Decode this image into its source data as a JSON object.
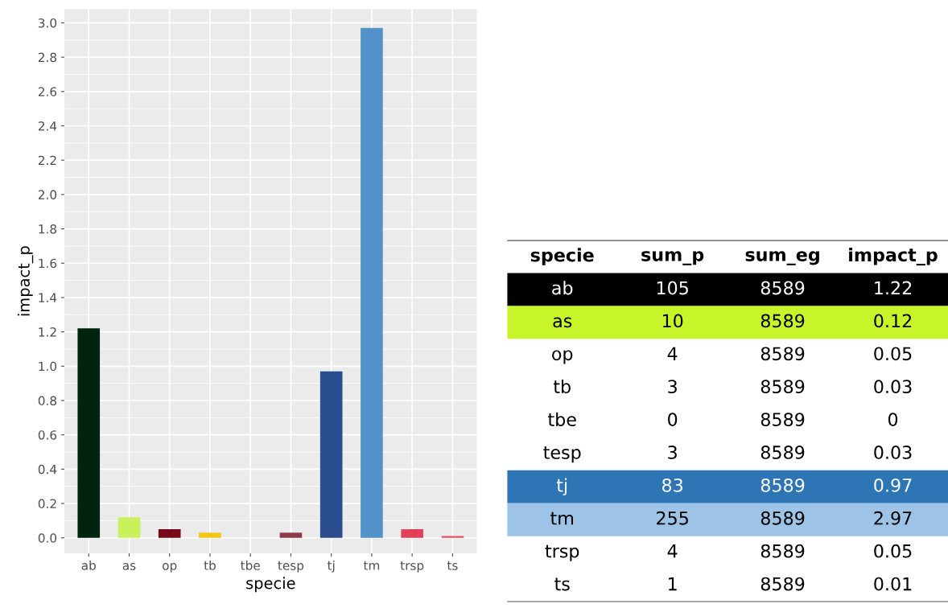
{
  "chart_data": [
    {
      "type": "bar",
      "xlabel": "specie",
      "ylabel": "impact_p",
      "categories": [
        "ab",
        "as",
        "op",
        "tb",
        "tbe",
        "tesp",
        "tj",
        "tm",
        "trsp",
        "ts"
      ],
      "values": [
        1.22,
        0.12,
        0.05,
        0.03,
        0,
        0.03,
        0.97,
        2.97,
        0.05,
        0.01
      ],
      "colors": [
        "#00240f",
        "#c8f25c",
        "#760817",
        "#f5c518",
        "#8a8a8a",
        "#8e3a48",
        "#2a4d8f",
        "#5292c8",
        "#e2405a",
        "#e8505e"
      ],
      "ylim": [
        -0.09,
        3.08
      ],
      "yticks": [
        {
          "value": 0,
          "label": "0.0"
        },
        {
          "value": 0.2,
          "label": "0.2"
        },
        {
          "value": 0.4,
          "label": "0.4"
        },
        {
          "value": 0.6,
          "label": "0.6"
        },
        {
          "value": 0.8,
          "label": "0.8"
        },
        {
          "value": 1,
          "label": "1.0"
        },
        {
          "value": 1.2,
          "label": "1.2"
        },
        {
          "value": 1.4,
          "label": "1.4"
        },
        {
          "value": 1.6,
          "label": "1.6"
        },
        {
          "value": 1.8,
          "label": "1.8"
        },
        {
          "value": 2,
          "label": "2.0"
        },
        {
          "value": 2.2,
          "label": "2.2"
        },
        {
          "value": 2.4,
          "label": "2.4"
        },
        {
          "value": 2.6,
          "label": "2.6"
        },
        {
          "value": 2.8,
          "label": "2.8"
        },
        {
          "value": 3,
          "label": "3.0"
        }
      ],
      "grid": true
    },
    {
      "type": "other",
      "categories": [
        "specie",
        "sum_p",
        "sum_eg",
        "impact_p"
      ],
      "annotations": [
        "ab",
        "105",
        "8589",
        "1.22",
        "as",
        "10",
        "8589",
        "0.12",
        "op",
        "4",
        "8589",
        "0.05",
        "tb",
        "3",
        "8589",
        "0.03",
        "tbe",
        "0",
        "8589",
        "0",
        "tesp",
        "3",
        "8589",
        "0.03",
        "tj",
        "83",
        "8589",
        "0.97",
        "tm",
        "255",
        "8589",
        "2.97",
        "trsp",
        "4",
        "8589",
        "0.05",
        "ts",
        "1",
        "8589",
        "0.01"
      ],
      "colors": [
        "#000000",
        "#c8f52a",
        null,
        null,
        null,
        null,
        "#2e75b6",
        "#9dc3e6",
        null,
        null
      ]
    }
  ]
}
